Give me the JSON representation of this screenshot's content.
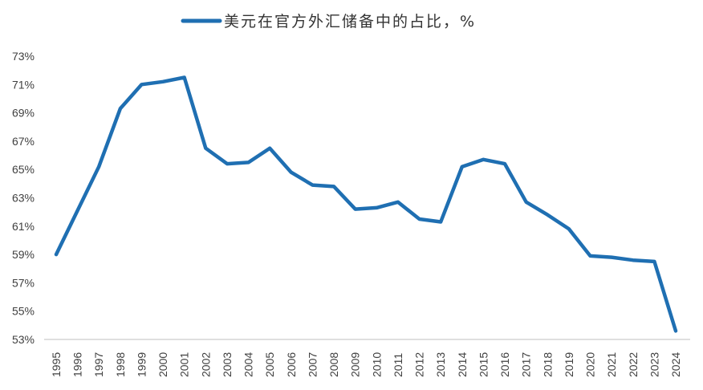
{
  "chart_data": {
    "type": "line",
    "title": "",
    "xlabel": "",
    "ylabel": "",
    "legend": {
      "position": "top-center",
      "entries": [
        "美元在官方外汇储备中的占比，%"
      ]
    },
    "grid": false,
    "ylim": [
      53,
      73
    ],
    "y_ticks": [
      "53%",
      "55%",
      "57%",
      "59%",
      "61%",
      "63%",
      "65%",
      "67%",
      "69%",
      "71%",
      "73%"
    ],
    "series": [
      {
        "name": "美元在官方外汇储备中的占比，%",
        "color": "#1f6fb2",
        "points": [
          {
            "x": "1995",
            "y": 59.0
          },
          {
            "x": "1996",
            "y": 62.1
          },
          {
            "x": "1997",
            "y": 65.2
          },
          {
            "x": "1998",
            "y": 69.3
          },
          {
            "x": "1999",
            "y": 71.0
          },
          {
            "x": "2000",
            "y": 71.2
          },
          {
            "x": "2001",
            "y": 71.5
          },
          {
            "x": "2002",
            "y": 66.5
          },
          {
            "x": "2003",
            "y": 65.4
          },
          {
            "x": "2004",
            "y": 65.5
          },
          {
            "x": "2005",
            "y": 66.5
          },
          {
            "x": "2006",
            "y": 64.8
          },
          {
            "x": "2007",
            "y": 63.9
          },
          {
            "x": "2008",
            "y": 63.8
          },
          {
            "x": "2009",
            "y": 62.2
          },
          {
            "x": "2010",
            "y": 62.3
          },
          {
            "x": "2011",
            "y": 62.7
          },
          {
            "x": "2012",
            "y": 61.5
          },
          {
            "x": "2013",
            "y": 61.3
          },
          {
            "x": "2014",
            "y": 65.2
          },
          {
            "x": "2015",
            "y": 65.7
          },
          {
            "x": "2016",
            "y": 65.4
          },
          {
            "x": "2017",
            "y": 62.7
          },
          {
            "x": "2018",
            "y": 61.8
          },
          {
            "x": "2019",
            "y": 60.8
          },
          {
            "x": "2020",
            "y": 58.9
          },
          {
            "x": "2021",
            "y": 58.8
          },
          {
            "x": "2022",
            "y": 58.6
          },
          {
            "x": "2023",
            "y": 58.5
          },
          {
            "x": "2024",
            "y": 53.6
          }
        ]
      }
    ]
  }
}
